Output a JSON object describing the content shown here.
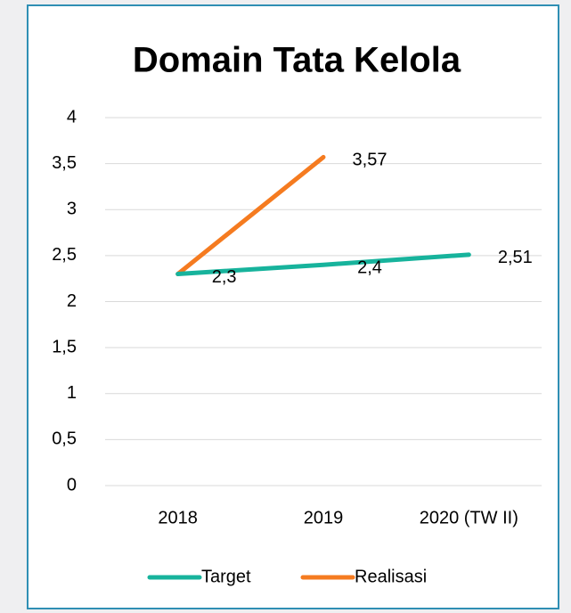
{
  "chart_data": {
    "type": "line",
    "title": "Domain Tata Kelola",
    "categories": [
      "2018",
      "2019",
      "2020 (TW II)"
    ],
    "series": [
      {
        "name": "Target",
        "color": "#17b39c",
        "values": [
          2.3,
          2.4,
          2.51
        ],
        "value_labels": [
          "2,3",
          "2,4",
          "2,51"
        ]
      },
      {
        "name": "Realisasi",
        "color": "#f57b20",
        "values": [
          2.3,
          3.57,
          null
        ],
        "value_labels": [
          null,
          "3,57",
          null
        ]
      }
    ],
    "ylim": [
      0,
      4
    ],
    "yticks": [
      0,
      {
        "value": 0.5,
        "label": "0,5"
      },
      1,
      {
        "value": 1.5,
        "label": "1,5"
      },
      2,
      {
        "value": 2.5,
        "label": "2,5"
      },
      3,
      {
        "value": 3.5,
        "label": "3,5"
      },
      4
    ],
    "grid": true,
    "legend": "bottom"
  }
}
